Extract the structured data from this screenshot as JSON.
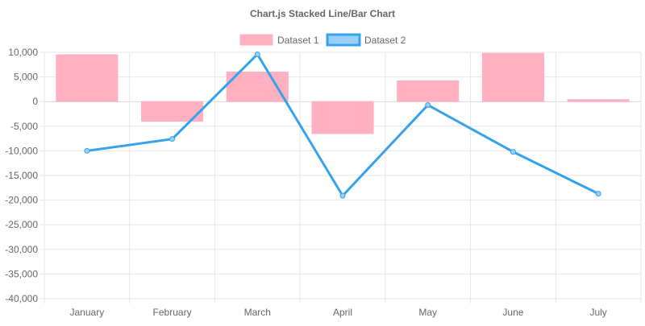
{
  "chart_data": {
    "type": "bar",
    "title": "Chart.js Stacked Line/Bar Chart",
    "categories": [
      "January",
      "February",
      "March",
      "April",
      "May",
      "June",
      "July"
    ],
    "ylim": [
      -40000,
      10000
    ],
    "y_ticks": [
      "10,000",
      "5,000",
      "0",
      "-5,000",
      "-10,000",
      "-15,000",
      "-20,000",
      "-25,000",
      "-30,000",
      "-35,000",
      "-40,000"
    ],
    "y_tick_values": [
      10000,
      5000,
      0,
      -5000,
      -10000,
      -15000,
      -20000,
      -25000,
      -30000,
      -35000,
      -40000
    ],
    "grid": true,
    "legend_position": "top",
    "series": [
      {
        "name": "Dataset 1",
        "type": "bar",
        "values": [
          9500,
          -4000,
          6000,
          -6500,
          4200,
          9800,
          400
        ],
        "fill_color": "#ffb1c1",
        "stroke_color": "#ffb1c1"
      },
      {
        "name": "Dataset 2",
        "type": "line",
        "values": [
          -10000,
          -7600,
          9600,
          -19100,
          -700,
          -10200,
          -18700
        ],
        "fill_color": "#9ad0f5",
        "stroke_color": "#36a2eb"
      }
    ]
  }
}
